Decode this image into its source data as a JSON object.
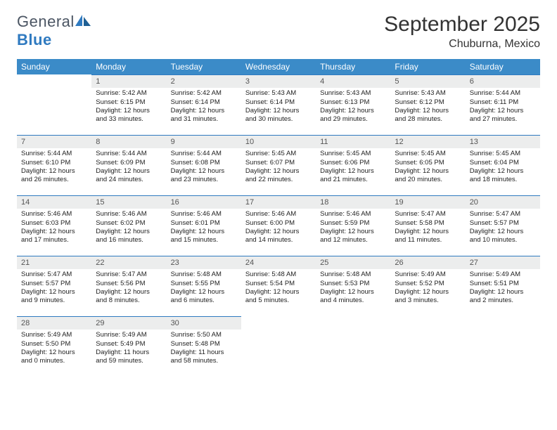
{
  "brand": {
    "part1": "General",
    "part2": "Blue"
  },
  "title": "September 2025",
  "location": "Chuburna, Mexico",
  "colors": {
    "header_bg": "#3b8bc8",
    "header_fg": "#ffffff",
    "daynum_bg": "#eceded",
    "daynum_border": "#2f7ac0",
    "brand_gray": "#6b7280",
    "brand_blue": "#2f7ac0",
    "page_bg": "#ffffff"
  },
  "weekdays": [
    "Sunday",
    "Monday",
    "Tuesday",
    "Wednesday",
    "Thursday",
    "Friday",
    "Saturday"
  ],
  "start_offset": 1,
  "days": [
    {
      "n": 1,
      "sunrise": "5:42 AM",
      "sunset": "6:15 PM",
      "daylight": "12 hours and 33 minutes."
    },
    {
      "n": 2,
      "sunrise": "5:42 AM",
      "sunset": "6:14 PM",
      "daylight": "12 hours and 31 minutes."
    },
    {
      "n": 3,
      "sunrise": "5:43 AM",
      "sunset": "6:14 PM",
      "daylight": "12 hours and 30 minutes."
    },
    {
      "n": 4,
      "sunrise": "5:43 AM",
      "sunset": "6:13 PM",
      "daylight": "12 hours and 29 minutes."
    },
    {
      "n": 5,
      "sunrise": "5:43 AM",
      "sunset": "6:12 PM",
      "daylight": "12 hours and 28 minutes."
    },
    {
      "n": 6,
      "sunrise": "5:44 AM",
      "sunset": "6:11 PM",
      "daylight": "12 hours and 27 minutes."
    },
    {
      "n": 7,
      "sunrise": "5:44 AM",
      "sunset": "6:10 PM",
      "daylight": "12 hours and 26 minutes."
    },
    {
      "n": 8,
      "sunrise": "5:44 AM",
      "sunset": "6:09 PM",
      "daylight": "12 hours and 24 minutes."
    },
    {
      "n": 9,
      "sunrise": "5:44 AM",
      "sunset": "6:08 PM",
      "daylight": "12 hours and 23 minutes."
    },
    {
      "n": 10,
      "sunrise": "5:45 AM",
      "sunset": "6:07 PM",
      "daylight": "12 hours and 22 minutes."
    },
    {
      "n": 11,
      "sunrise": "5:45 AM",
      "sunset": "6:06 PM",
      "daylight": "12 hours and 21 minutes."
    },
    {
      "n": 12,
      "sunrise": "5:45 AM",
      "sunset": "6:05 PM",
      "daylight": "12 hours and 20 minutes."
    },
    {
      "n": 13,
      "sunrise": "5:45 AM",
      "sunset": "6:04 PM",
      "daylight": "12 hours and 18 minutes."
    },
    {
      "n": 14,
      "sunrise": "5:46 AM",
      "sunset": "6:03 PM",
      "daylight": "12 hours and 17 minutes."
    },
    {
      "n": 15,
      "sunrise": "5:46 AM",
      "sunset": "6:02 PM",
      "daylight": "12 hours and 16 minutes."
    },
    {
      "n": 16,
      "sunrise": "5:46 AM",
      "sunset": "6:01 PM",
      "daylight": "12 hours and 15 minutes."
    },
    {
      "n": 17,
      "sunrise": "5:46 AM",
      "sunset": "6:00 PM",
      "daylight": "12 hours and 14 minutes."
    },
    {
      "n": 18,
      "sunrise": "5:46 AM",
      "sunset": "5:59 PM",
      "daylight": "12 hours and 12 minutes."
    },
    {
      "n": 19,
      "sunrise": "5:47 AM",
      "sunset": "5:58 PM",
      "daylight": "12 hours and 11 minutes."
    },
    {
      "n": 20,
      "sunrise": "5:47 AM",
      "sunset": "5:57 PM",
      "daylight": "12 hours and 10 minutes."
    },
    {
      "n": 21,
      "sunrise": "5:47 AM",
      "sunset": "5:57 PM",
      "daylight": "12 hours and 9 minutes."
    },
    {
      "n": 22,
      "sunrise": "5:47 AM",
      "sunset": "5:56 PM",
      "daylight": "12 hours and 8 minutes."
    },
    {
      "n": 23,
      "sunrise": "5:48 AM",
      "sunset": "5:55 PM",
      "daylight": "12 hours and 6 minutes."
    },
    {
      "n": 24,
      "sunrise": "5:48 AM",
      "sunset": "5:54 PM",
      "daylight": "12 hours and 5 minutes."
    },
    {
      "n": 25,
      "sunrise": "5:48 AM",
      "sunset": "5:53 PM",
      "daylight": "12 hours and 4 minutes."
    },
    {
      "n": 26,
      "sunrise": "5:49 AM",
      "sunset": "5:52 PM",
      "daylight": "12 hours and 3 minutes."
    },
    {
      "n": 27,
      "sunrise": "5:49 AM",
      "sunset": "5:51 PM",
      "daylight": "12 hours and 2 minutes."
    },
    {
      "n": 28,
      "sunrise": "5:49 AM",
      "sunset": "5:50 PM",
      "daylight": "12 hours and 0 minutes."
    },
    {
      "n": 29,
      "sunrise": "5:49 AM",
      "sunset": "5:49 PM",
      "daylight": "11 hours and 59 minutes."
    },
    {
      "n": 30,
      "sunrise": "5:50 AM",
      "sunset": "5:48 PM",
      "daylight": "11 hours and 58 minutes."
    }
  ]
}
